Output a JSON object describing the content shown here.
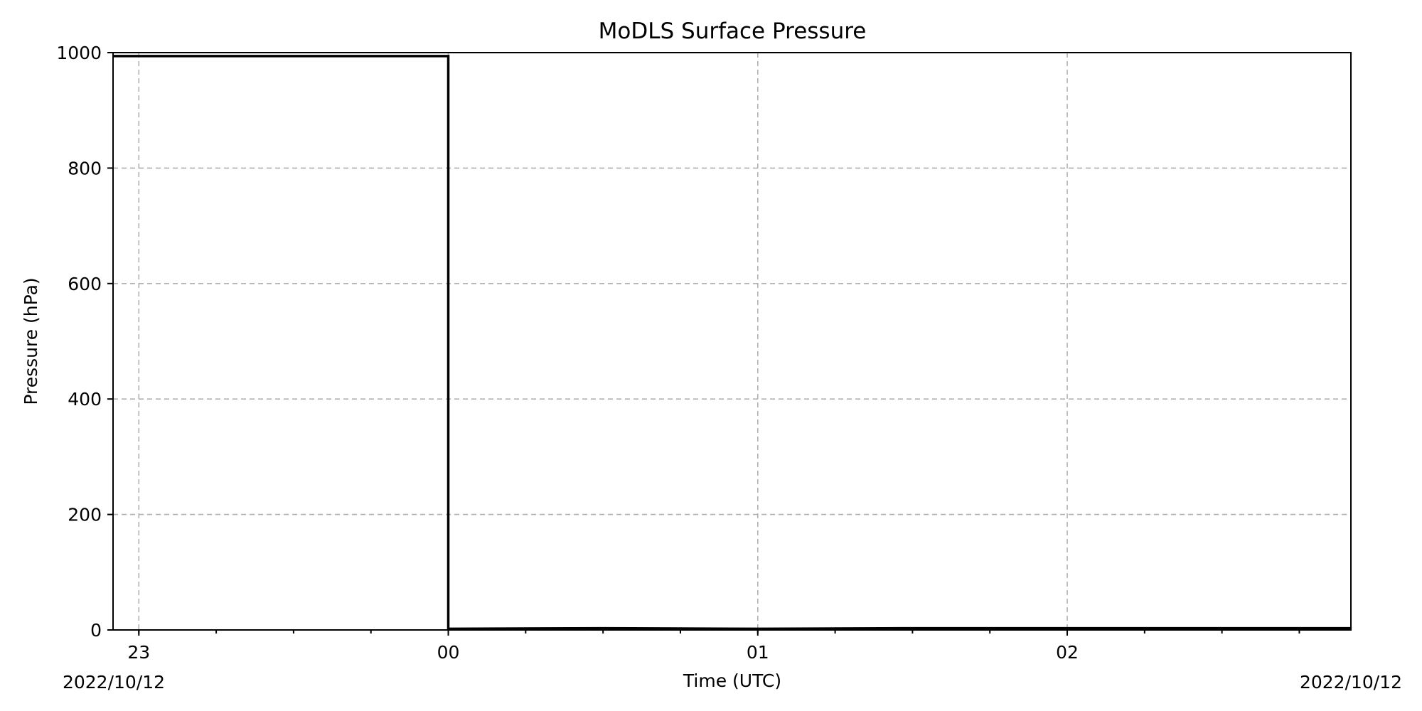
{
  "chart_data": {
    "type": "line",
    "title": "MoDLS Surface Pressure",
    "xlabel": "Time (UTC)",
    "ylabel": "Pressure (hPa)",
    "x_axis": {
      "type": "time",
      "min": "2022-10-11T22:55",
      "max": "2022-10-12T02:55",
      "ticks": [
        {
          "t": "2022-10-11T23:00",
          "label": "23"
        },
        {
          "t": "2022-10-12T00:00",
          "label": "00"
        },
        {
          "t": "2022-10-12T01:00",
          "label": "01"
        },
        {
          "t": "2022-10-12T02:00",
          "label": "02"
        }
      ],
      "minor_tick_step_minutes": 15,
      "start_date_label": "2022/10/12",
      "end_date_label": "2022/10/12"
    },
    "ylim": [
      0,
      1000
    ],
    "y_ticks": [
      0,
      200,
      400,
      600,
      800,
      1000
    ],
    "grid": true,
    "series": [
      {
        "color": "#000000",
        "x": [
          "2022-10-11T22:55",
          "2022-10-12T00:00",
          "2022-10-12T00:00",
          "2022-10-12T00:30",
          "2022-10-12T01:00",
          "2022-10-12T01:30",
          "2022-10-12T02:00",
          "2022-10-12T02:30",
          "2022-10-12T02:55"
        ],
        "y": [
          994,
          994,
          2,
          3,
          2,
          3,
          3,
          3,
          3
        ]
      }
    ]
  }
}
